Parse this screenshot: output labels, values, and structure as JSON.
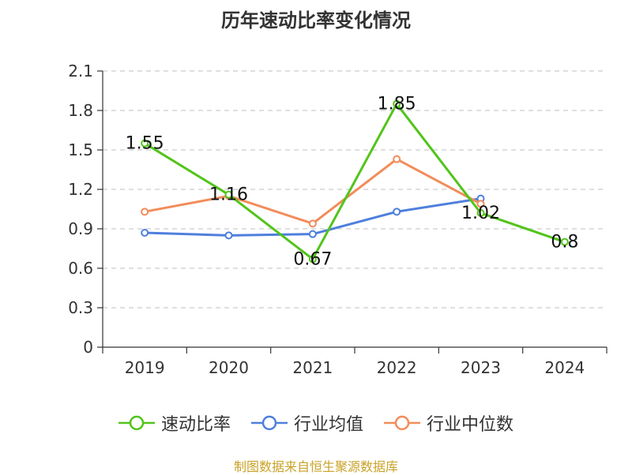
{
  "title": "历年速动比率变化情况",
  "footer": "制图数据来自恒生聚源数据库",
  "chart_data": {
    "type": "line",
    "categories": [
      "2019",
      "2020",
      "2021",
      "2022",
      "2023",
      "2024"
    ],
    "ylim": [
      0,
      2.1
    ],
    "yticks": [
      "0",
      "0.3",
      "0.6",
      "0.9",
      "1.2",
      "1.5",
      "1.8",
      "2.1"
    ],
    "grid": true,
    "legend_position": "bottom",
    "series": [
      {
        "name": "速动比率",
        "color": "#52c41a",
        "values": [
          1.55,
          1.16,
          0.67,
          1.85,
          1.02,
          0.8
        ],
        "labels": [
          "1.55",
          "1.16",
          "0.67",
          "1.85",
          "1.02",
          "0.8"
        ]
      },
      {
        "name": "行业均值",
        "color": "#4f7fdc",
        "values": [
          0.87,
          0.85,
          0.86,
          1.03,
          1.13,
          null
        ]
      },
      {
        "name": "行业中位数",
        "color": "#f28c5a",
        "values": [
          1.03,
          1.15,
          0.94,
          1.43,
          1.09,
          null
        ]
      }
    ]
  }
}
